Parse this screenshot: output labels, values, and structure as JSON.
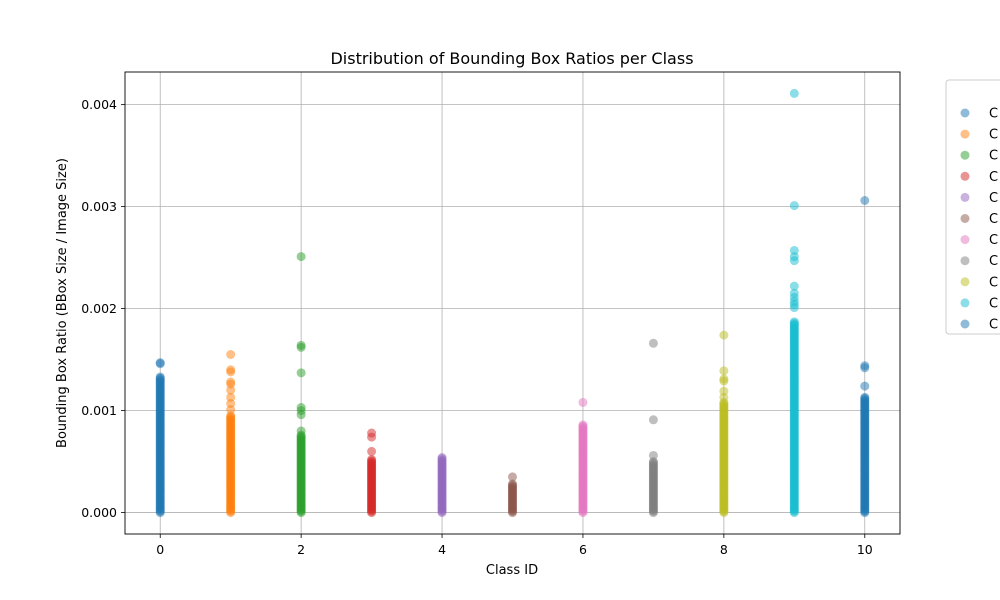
{
  "chart_data": {
    "type": "scatter",
    "title": "Distribution of Bounding Box Ratios per Class",
    "xlabel": "Class ID",
    "ylabel": "Bounding Box Ratio (BBox Size / Image Size)",
    "xlim": [
      -0.5,
      10.5
    ],
    "ylim": [
      -0.00021,
      0.00432
    ],
    "xticks": [
      "0",
      "2",
      "4",
      "6",
      "8",
      "10"
    ],
    "yticks": [
      "0.000",
      "0.001",
      "0.002",
      "0.003",
      "0.004"
    ],
    "grid": true,
    "legend_placement": "outside-right",
    "legend_labels": [
      "C",
      "C",
      "C",
      "C",
      "C",
      "C",
      "C",
      "C",
      "C",
      "C",
      "C"
    ],
    "series": [
      {
        "x": 0,
        "color": "#1f77b4",
        "dense_range": [
          0.0,
          0.00133
        ],
        "outliers": [
          0.00146,
          0.00147
        ]
      },
      {
        "x": 1,
        "color": "#ff7f0e",
        "dense_range": [
          0.0,
          0.00095
        ],
        "outliers": [
          0.00101,
          0.00107,
          0.00113,
          0.0012,
          0.00126,
          0.00128,
          0.00138,
          0.0014,
          0.00155
        ]
      },
      {
        "x": 2,
        "color": "#2ca02c",
        "dense_range": [
          0.0,
          0.00076
        ],
        "outliers": [
          0.0008,
          0.00096,
          0.001,
          0.00103,
          0.00137,
          0.00162,
          0.00164,
          0.00251
        ]
      },
      {
        "x": 3,
        "color": "#d62728",
        "dense_range": [
          0.0,
          0.00052
        ],
        "outliers": [
          0.0006,
          0.00074,
          0.00078
        ]
      },
      {
        "x": 4,
        "color": "#9467bd",
        "dense_range": [
          0.0,
          0.00054
        ],
        "outliers": []
      },
      {
        "x": 5,
        "color": "#8c564b",
        "dense_range": [
          0.0,
          0.00028
        ],
        "outliers": [
          0.00035
        ]
      },
      {
        "x": 6,
        "color": "#e377c2",
        "dense_range": [
          0.0,
          0.00086
        ],
        "outliers": [
          0.00108
        ]
      },
      {
        "x": 7,
        "color": "#7f7f7f",
        "dense_range": [
          0.0,
          0.0005
        ],
        "outliers": [
          0.00056,
          0.00091,
          0.00166
        ]
      },
      {
        "x": 8,
        "color": "#bcbd22",
        "dense_range": [
          0.0,
          0.00108
        ],
        "outliers": [
          0.00113,
          0.00119,
          0.00129,
          0.00131,
          0.00139,
          0.00174
        ]
      },
      {
        "x": 9,
        "color": "#17becf",
        "dense_range": [
          0.0,
          0.00187
        ],
        "outliers": [
          0.00201,
          0.00204,
          0.00207,
          0.00211,
          0.00215,
          0.00222,
          0.00247,
          0.00251,
          0.00257,
          0.00301,
          0.00411
        ]
      },
      {
        "x": 10,
        "color": "#1f77b4",
        "dense_range": [
          0.0,
          0.00113
        ],
        "outliers": [
          0.00124,
          0.00142,
          0.00144,
          0.00306
        ]
      }
    ]
  }
}
